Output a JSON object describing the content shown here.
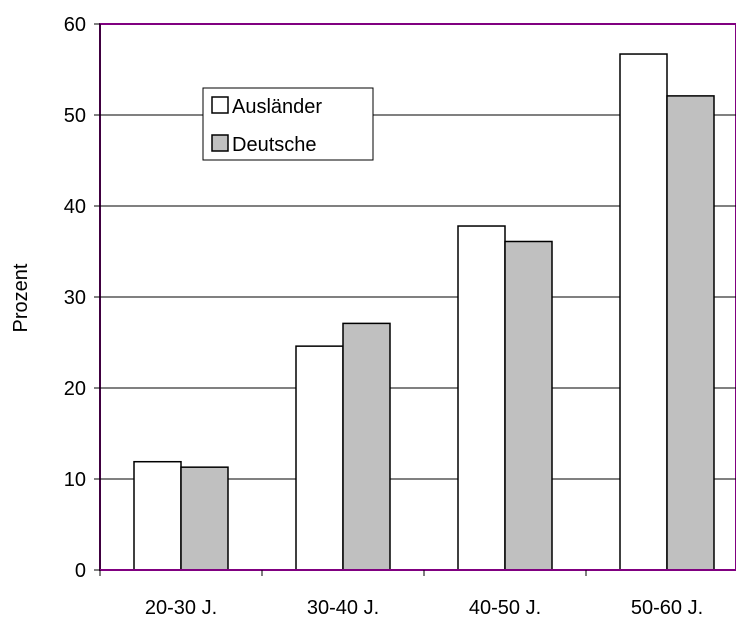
{
  "chart_data": {
    "type": "bar",
    "title": "",
    "xlabel": "",
    "ylabel": "Prozent",
    "ylim": [
      0,
      60
    ],
    "yticks": [
      0,
      10,
      20,
      30,
      40,
      50,
      60
    ],
    "grid": true,
    "legend_position": "top-left",
    "categories": [
      "20-30 J.",
      "30-40 J.",
      "40-50 J.",
      "50-60 J."
    ],
    "series": [
      {
        "name": "Ausländer",
        "values": [
          11.9,
          24.6,
          37.8,
          56.7
        ],
        "color": "#ffffff"
      },
      {
        "name": "Deutsche",
        "values": [
          11.3,
          27.1,
          36.1,
          52.1
        ],
        "color": "#c0c0c0"
      }
    ],
    "colors": {
      "plot_frame": "#800080",
      "bar_outline": "#000000",
      "grid": "#000000"
    }
  }
}
